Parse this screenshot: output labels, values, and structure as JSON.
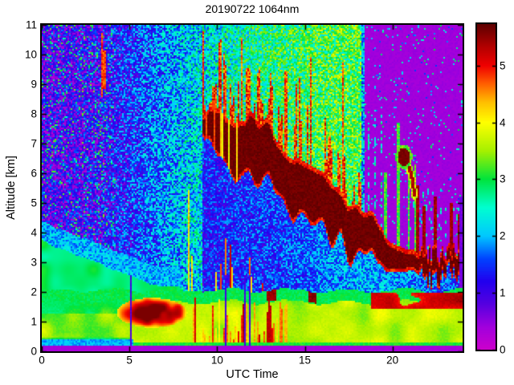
{
  "chart_data": {
    "type": "heatmap",
    "title": "20190722 1064nm",
    "xlabel": "UTC Time",
    "ylabel": "Altitude [km]",
    "x_range": [
      0,
      24
    ],
    "y_range": [
      0,
      11
    ],
    "x_ticks": [
      0,
      5,
      10,
      15,
      20
    ],
    "y_ticks": [
      0,
      1,
      2,
      3,
      4,
      5,
      6,
      7,
      8,
      9,
      10,
      11
    ],
    "grid": false,
    "legend_position": "none",
    "colorbar": {
      "ticks": [
        0,
        1,
        2,
        3,
        4,
        5
      ],
      "range": [
        0,
        5.73
      ],
      "stops": [
        [
          0.0,
          "#cc00cc"
        ],
        [
          0.4,
          "#a000dd"
        ],
        [
          0.8,
          "#5500e0"
        ],
        [
          1.2,
          "#2200ee"
        ],
        [
          1.6,
          "#0044ff"
        ],
        [
          2.0,
          "#00c8ff"
        ],
        [
          2.5,
          "#00ffd0"
        ],
        [
          3.0,
          "#00e43c"
        ],
        [
          3.5,
          "#a6f000"
        ],
        [
          4.0,
          "#ffff00"
        ],
        [
          4.35,
          "#ffc000"
        ],
        [
          4.7,
          "#ff5a00"
        ],
        [
          5.0,
          "#f00000"
        ],
        [
          5.35,
          "#b00000"
        ],
        [
          5.73,
          "#5f0000"
        ]
      ]
    },
    "features": {
      "surface_strip": {
        "top": 0.18,
        "value": 0.27
      },
      "cyan_line": {
        "t_max": 5.2,
        "z_max": 0.38,
        "value": 1.7
      },
      "ground_green_line": {
        "z_max": 0.32,
        "value": 2.9
      },
      "boundary_layer": {
        "top": 2.02,
        "cap_value": 2.95,
        "cap_depth": 0.4,
        "body_value_left": 3.05,
        "body_value": 3.55,
        "left_t": 5.0,
        "red_blob": {
          "t": [
            4.3,
            8.3
          ],
          "center_t": 6.3,
          "center_z": 1.3,
          "rt": 2.0,
          "rz": 0.5,
          "value": 4.3
        },
        "streaks": {
          "t": [
            8.5,
            14.2
          ],
          "prob": 0.55,
          "top_min": 0.4,
          "top_max": 1.85,
          "value": 3.8
        },
        "right_red_layer": {
          "t": [
            18.8,
            24
          ],
          "z": [
            1.42,
            1.98
          ],
          "value": 4.5
        },
        "cap_blobs": [
          {
            "t": [
              12.85,
              13.35
            ],
            "value": 5.3
          },
          {
            "t": [
              15.25,
              15.7
            ],
            "value": 5.4
          }
        ]
      },
      "attenuation_columns": {
        "t": [
          5.08,
          10.45,
          11.55,
          11.85
        ],
        "z_max": 2.55,
        "value": 0.75,
        "half_width": 0.05
      },
      "residual_layer": {
        "points": [
          [
            0,
            3.7
          ],
          [
            2,
            3.2
          ],
          [
            4,
            2.7
          ],
          [
            6,
            2.25
          ],
          [
            8,
            2.1
          ]
        ],
        "value": 2.85,
        "fade_depth": 0.65,
        "fade_value": 2.0,
        "t_max": 8
      },
      "elevated_layer": {
        "t_start": 9.2,
        "top_points": [
          [
            9.2,
            8.2
          ],
          [
            10,
            8.15
          ],
          [
            11,
            8.0
          ],
          [
            12,
            7.9
          ],
          [
            13,
            7.6
          ],
          [
            14,
            6.6
          ],
          [
            15,
            6.1
          ],
          [
            16,
            5.8
          ],
          [
            17,
            5.35
          ],
          [
            18,
            4.9
          ],
          [
            19,
            4.4
          ],
          [
            20,
            3.9
          ],
          [
            21,
            3.6
          ],
          [
            22,
            3.5
          ],
          [
            23,
            3.4
          ],
          [
            24,
            3.3
          ]
        ],
        "thickness_points": [
          [
            9.2,
            0.8
          ],
          [
            11,
            2.0
          ],
          [
            13,
            1.8
          ],
          [
            15,
            1.9
          ],
          [
            17,
            1.75
          ],
          [
            18,
            1.7
          ],
          [
            19,
            1.5
          ],
          [
            20,
            1.1
          ],
          [
            21,
            0.8
          ],
          [
            22,
            0.85
          ],
          [
            23,
            0.8
          ],
          [
            24,
            0.7
          ]
        ],
        "value": 5.55,
        "rim_value": 4.7,
        "gap_t_max": 12,
        "gap_prob": 0.28,
        "spikes": {
          "prob": 0.55,
          "max_height": 1.9,
          "value": 4.3
        }
      },
      "below_layer": {
        "base_points": [
          [
            9.2,
            1.3
          ],
          [
            14,
            1.5
          ],
          [
            18,
            2.0
          ],
          [
            21,
            1.8
          ],
          [
            24,
            1.5
          ]
        ],
        "jitter": 1.25,
        "onset_streaks": {
          "t_max": 12.6,
          "prob": 0.4,
          "value": 4.4
        },
        "pre_streaks": {
          "t": [
            8.3,
            9.2
          ],
          "prob": 0.3,
          "top_max": 5.5,
          "value": 3.7
        }
      },
      "background": {
        "points": [
          [
            0,
            0.9
          ],
          [
            3,
            1.05
          ],
          [
            5,
            1.35
          ],
          [
            7,
            1.85
          ],
          [
            9,
            2.25
          ],
          [
            11,
            2.55
          ],
          [
            13,
            2.8
          ],
          [
            15,
            3.0
          ],
          [
            17,
            3.1
          ],
          [
            18.4,
            3.1
          ]
        ],
        "jitter": 1.7,
        "green_dots": {
          "t_max": 4.2,
          "prob": 0.1,
          "value": 2.5
        },
        "blue_edge": {
          "t": [
            18.2,
            18.45
          ],
          "delta": -1.1
        }
      },
      "red_streaks_fixed": [
        [
          3.42,
          8.55,
          10.75
        ],
        [
          3.58,
          8.85,
          10.15
        ]
      ],
      "red_streaks_zones": [
        {
          "t": [
            9.2,
            12.6
          ],
          "prob": 0.22,
          "top_min": 9.3,
          "top_rand": 1.6,
          "value": 4.3
        },
        {
          "t": [
            12.6,
            18.35
          ],
          "prob": 0.16,
          "top_min": 7.6,
          "top_rand": 2.6,
          "value": 4.3
        }
      ],
      "clear_region": {
        "t_start": 18.45,
        "base": 0.32,
        "dot_prob": 0.045,
        "dot_value": 1.5,
        "low_dashes": {
          "t_min": 21,
          "z_max": 5.5,
          "prob": 0.1,
          "value": 2.0
        },
        "edge_dashes": {
          "t": [
            18.5,
            19.4
          ],
          "z_max": 8,
          "prob": 0.3,
          "value": 2.1
        },
        "green_streaks": [
          [
            20.35,
            3.4,
            7.7
          ],
          [
            20.9,
            3.4,
            6.5
          ],
          [
            21.3,
            3.3,
            6.3
          ],
          [
            19.6,
            3.6,
            6.0
          ]
        ],
        "dark_streaks": [
          [
            21.45,
            3.2,
            5.6
          ],
          [
            21.8,
            3.1,
            4.9
          ],
          [
            22.45,
            3.4,
            5.2
          ],
          [
            23.35,
            3.2,
            5.0
          ],
          [
            23.8,
            3.0,
            4.6
          ]
        ],
        "hook": {
          "cx": 20.65,
          "cz": 6.55,
          "rt": 0.36,
          "rz": 0.3,
          "ring": 1.8,
          "value": 5.5,
          "ring_value": 3.0,
          "arc": [
            [
              20.55,
              6.5
            ],
            [
              20.85,
              6.35
            ],
            [
              21.1,
              5.9
            ],
            [
              21.25,
              5.3
            ]
          ],
          "arc_width": 0.09,
          "arc_value": 5.1
        },
        "right_edge_band": {
          "t_min": 23.85,
          "z": [
            2.05,
            5.2
          ],
          "value": 0.5
        }
      }
    }
  }
}
